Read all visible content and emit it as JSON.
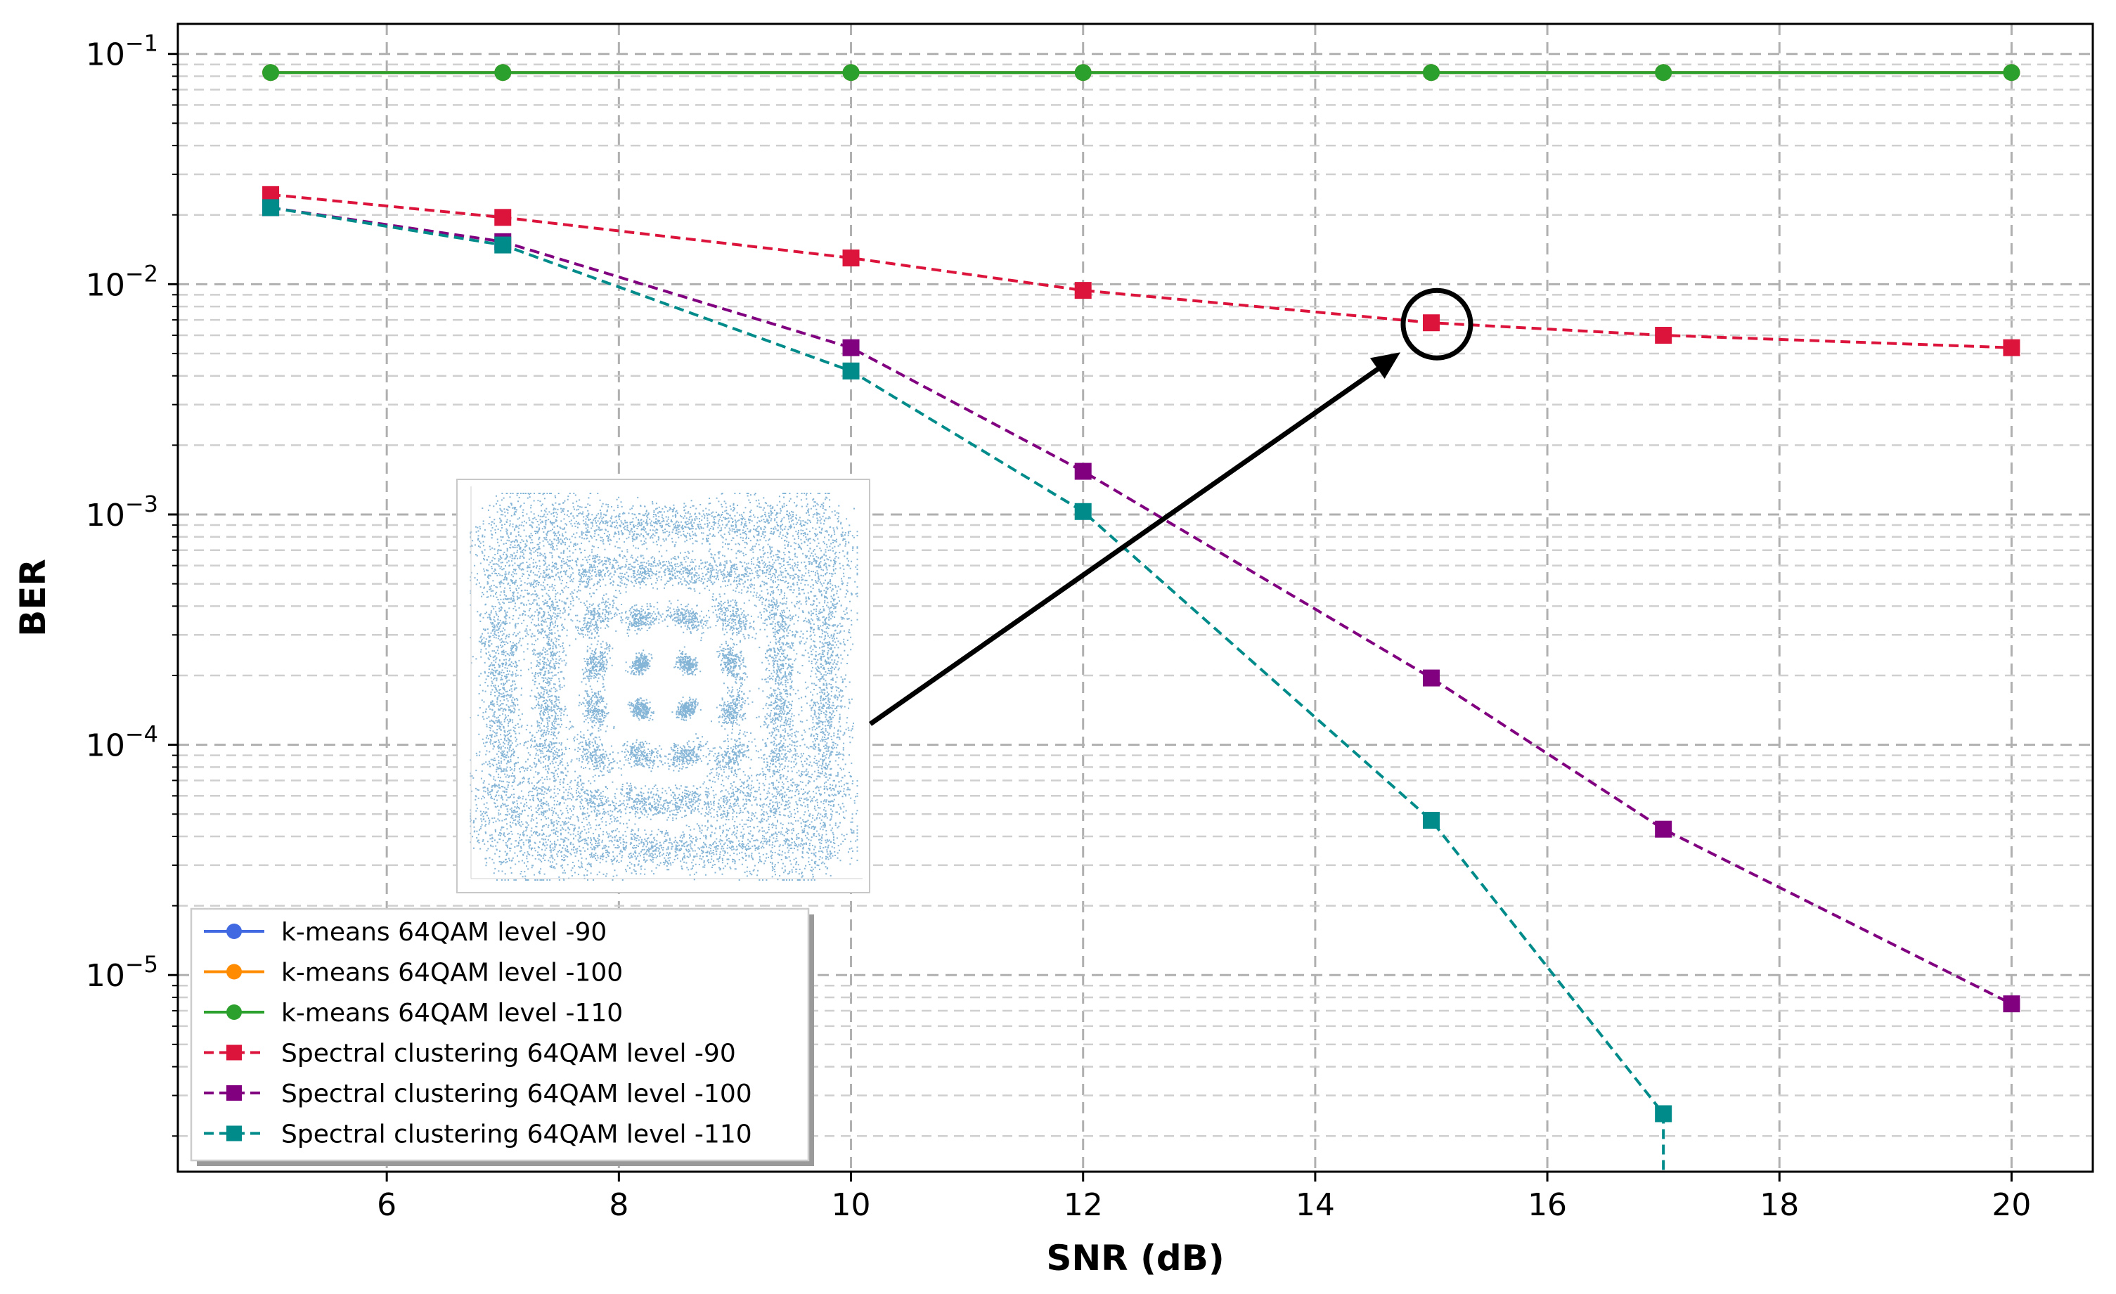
{
  "chart_data": {
    "type": "line",
    "xlabel": "SNR (dB)",
    "ylabel": "BER",
    "xlim": [
      4.2,
      20.7
    ],
    "ylim": [
      1.4e-06,
      0.135
    ],
    "yscale": "log",
    "grid": true,
    "legend_position": "lower-left",
    "x_ticks": [
      6,
      8,
      10,
      12,
      14,
      16,
      18,
      20
    ],
    "x_tick_labels": [
      "6",
      "8",
      "10",
      "12",
      "14",
      "16",
      "18",
      "20"
    ],
    "y_ticks": [
      1e-05,
      0.0001,
      0.001,
      0.01,
      0.1
    ],
    "y_tick_labels": [
      {
        "base": "10",
        "exp": "−5"
      },
      {
        "base": "10",
        "exp": "−4"
      },
      {
        "base": "10",
        "exp": "−3"
      },
      {
        "base": "10",
        "exp": "−2"
      },
      {
        "base": "10",
        "exp": "−1"
      }
    ],
    "x": [
      5,
      7,
      10,
      12,
      15,
      17,
      20
    ],
    "series": [
      {
        "name": "k-means 64QAM level -90",
        "color": "#4169E1",
        "marker": "circle",
        "dash": "solid",
        "values": [
          0.083,
          0.083,
          0.083,
          0.083,
          0.083,
          0.083,
          0.083
        ]
      },
      {
        "name": "k-means 64QAM level -100",
        "color": "#FF8C00",
        "marker": "circle",
        "dash": "solid",
        "values": [
          0.083,
          0.083,
          0.083,
          0.083,
          0.083,
          0.083,
          0.083
        ]
      },
      {
        "name": "k-means 64QAM level -110",
        "color": "#2CA02C",
        "marker": "circle",
        "dash": "solid",
        "values": [
          0.083,
          0.083,
          0.083,
          0.083,
          0.083,
          0.083,
          0.083
        ]
      },
      {
        "name": "Spectral clustering 64QAM level -90",
        "color": "#DC143C",
        "marker": "square",
        "dash": "dashed",
        "values": [
          0.0245,
          0.0195,
          0.013,
          0.0094,
          0.0068,
          0.006,
          0.0053
        ]
      },
      {
        "name": "Spectral clustering 64QAM level -100",
        "color": "#800080",
        "marker": "square",
        "dash": "dashed",
        "values": [
          0.0215,
          0.0153,
          0.0053,
          0.00154,
          0.000195,
          4.3e-05,
          7.5e-06
        ]
      },
      {
        "name": "Spectral clustering 64QAM level -110",
        "color": "#008B8B",
        "marker": "square",
        "dash": "dashed",
        "values": [
          0.0215,
          0.0148,
          0.0042,
          0.00103,
          4.7e-05,
          2.5e-06,
          null
        ]
      }
    ],
    "annotation": {
      "type": "arrow-to-circle",
      "target_series": "Spectral clustering 64QAM level -90",
      "target_x": 15,
      "target_y": 0.0068
    }
  },
  "inset": {
    "description_icon": "constellation-scatter-inset",
    "point_color": "#1F77B4"
  }
}
